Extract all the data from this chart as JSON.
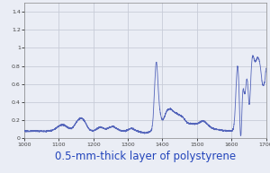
{
  "caption": "0.5-mm-thick layer of polystyrene",
  "xlim": [
    1000,
    1700
  ],
  "ylim": [
    0,
    1.5
  ],
  "ytick_labels": [
    "0",
    "0.2",
    "0.4",
    "0.6",
    "0.8",
    "1",
    "1.2",
    "1.4"
  ],
  "ytick_vals": [
    0,
    0.2,
    0.4,
    0.6,
    0.8,
    1.0,
    1.2,
    1.4
  ],
  "xtick_vals": [
    1000,
    1100,
    1200,
    1300,
    1400,
    1500,
    1600,
    1700
  ],
  "line_color": "#5566bb",
  "background_color": "#eaedf5",
  "grid_color": "#c8ccd8",
  "caption_color": "#2244bb",
  "caption_fontsize": 8.5,
  "tick_fontsize": 4.5
}
